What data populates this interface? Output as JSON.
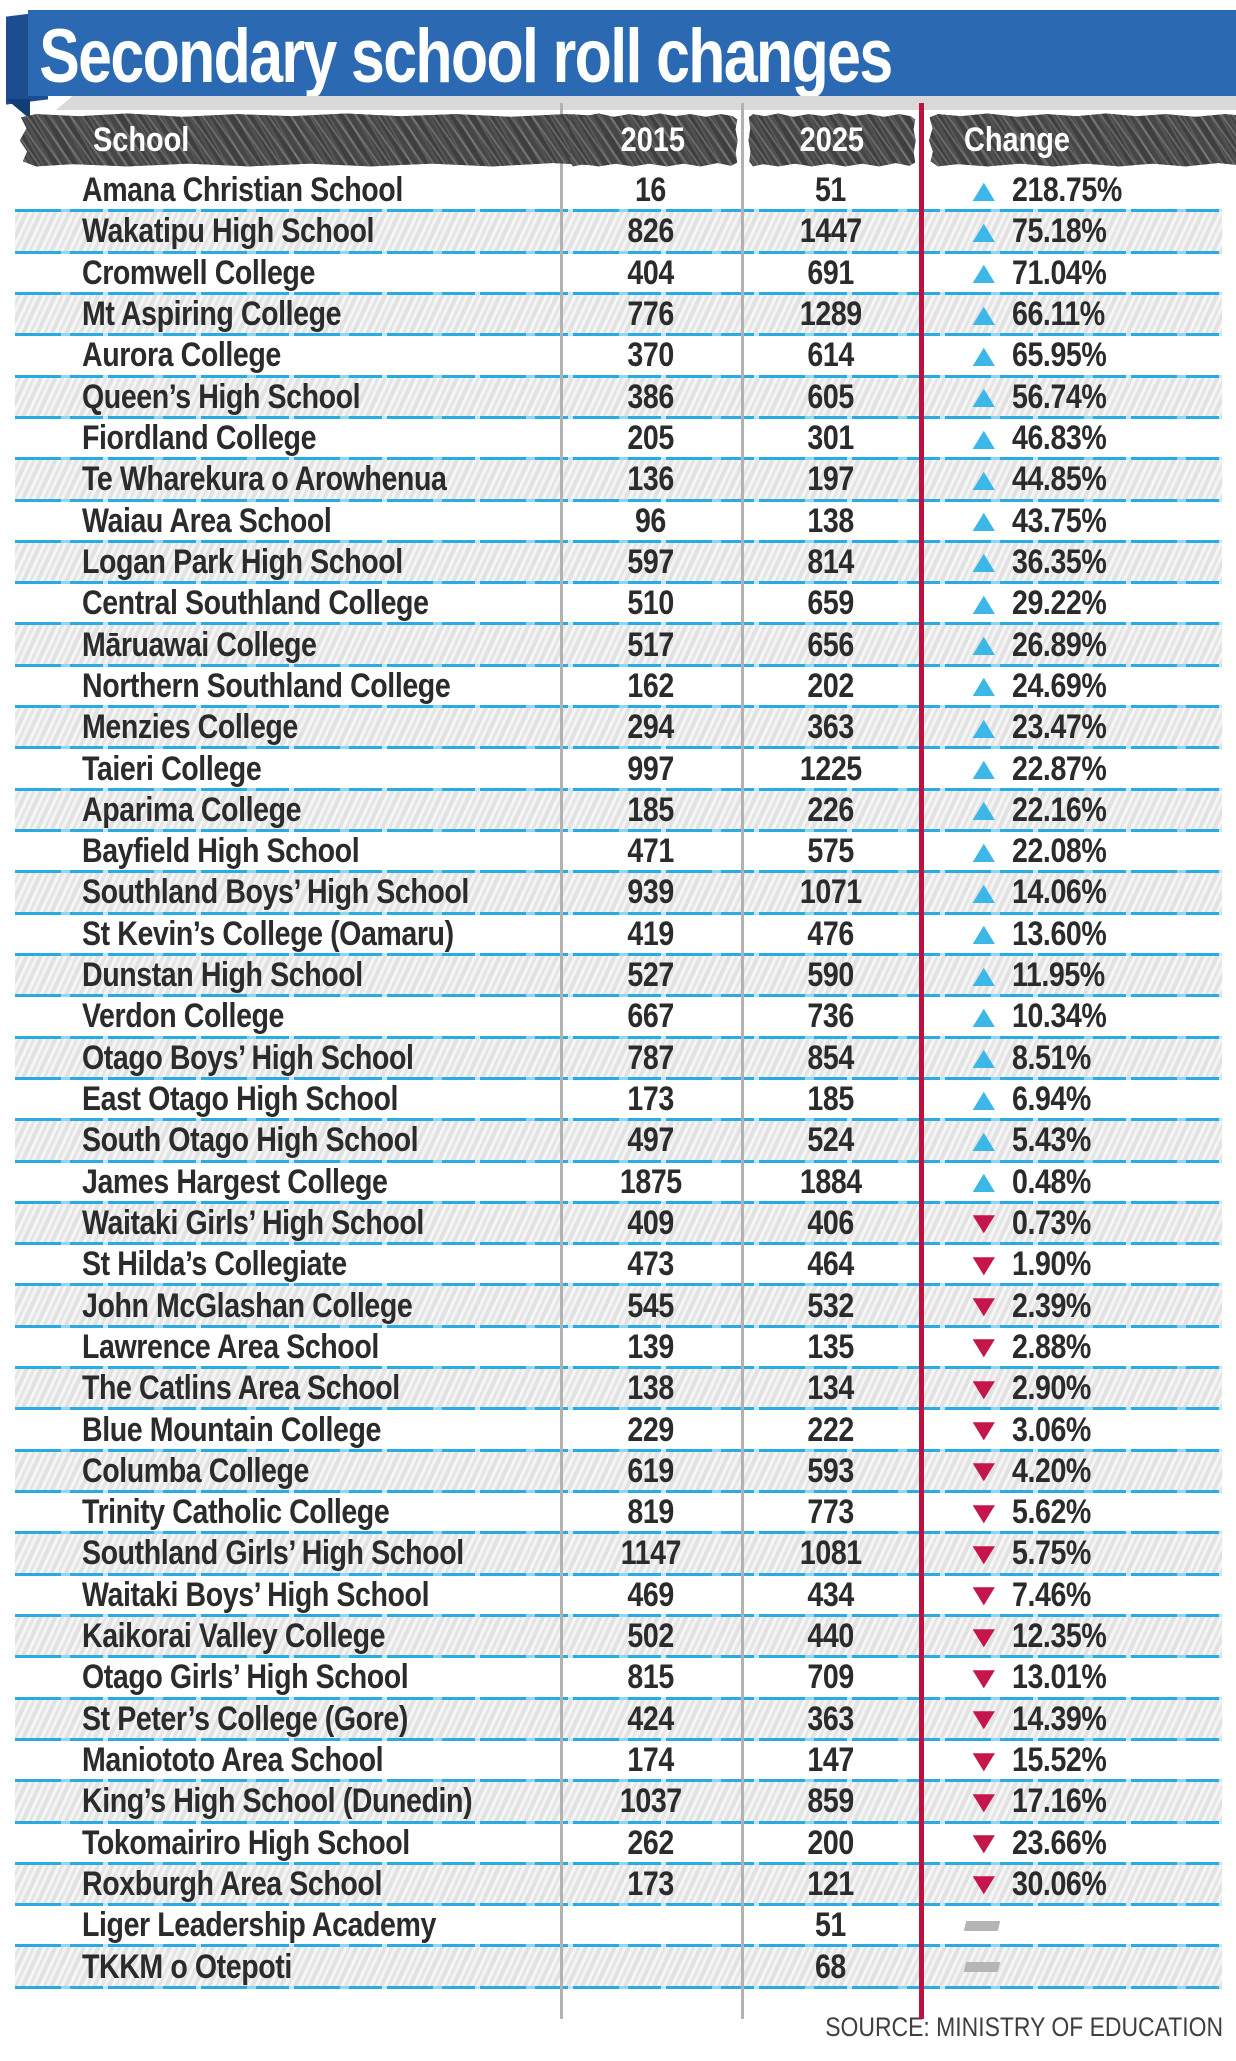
{
  "title": "Secondary school roll changes",
  "source": "SOURCE: MINISTRY OF EDUCATION",
  "icons": {
    "up_triangle": "▲",
    "down_triangle": "▼"
  },
  "colors": {
    "banner_blue": "#2b6ab3",
    "banner_bevel_blue": "#1c4d8f",
    "header_chalk_gray": "#484848",
    "row_stripe_gray": "#ececec",
    "row_line_blue": "#29abe2",
    "up_triangle_blue": "#3db6e8",
    "down_triangle_red": "#c4164a",
    "change_divider_red": "#bd1140",
    "column_divider_gray": "#b2b2b2",
    "text_dark": "#2b2b2b"
  },
  "chart_data": {
    "type": "table",
    "title": "Secondary school roll changes",
    "columns": [
      "School",
      "2015",
      "2025",
      "Change"
    ],
    "rows": [
      {
        "school": "Amana Christian School",
        "r2015": "16",
        "r2025": "51",
        "change": "218.75%",
        "dir": "up"
      },
      {
        "school": "Wakatipu High School",
        "r2015": "826",
        "r2025": "1447",
        "change": "75.18%",
        "dir": "up"
      },
      {
        "school": "Cromwell College",
        "r2015": "404",
        "r2025": "691",
        "change": "71.04%",
        "dir": "up"
      },
      {
        "school": "Mt Aspiring College",
        "r2015": "776",
        "r2025": "1289",
        "change": "66.11%",
        "dir": "up"
      },
      {
        "school": "Aurora College",
        "r2015": "370",
        "r2025": "614",
        "change": "65.95%",
        "dir": "up"
      },
      {
        "school": "Queen’s High School",
        "r2015": "386",
        "r2025": "605",
        "change": "56.74%",
        "dir": "up"
      },
      {
        "school": "Fiordland College",
        "r2015": "205",
        "r2025": "301",
        "change": "46.83%",
        "dir": "up"
      },
      {
        "school": "Te Wharekura o Arowhenua",
        "r2015": "136",
        "r2025": "197",
        "change": "44.85%",
        "dir": "up"
      },
      {
        "school": "Waiau Area School",
        "r2015": "96",
        "r2025": "138",
        "change": "43.75%",
        "dir": "up"
      },
      {
        "school": "Logan Park High School",
        "r2015": "597",
        "r2025": "814",
        "change": "36.35%",
        "dir": "up"
      },
      {
        "school": "Central Southland College",
        "r2015": "510",
        "r2025": "659",
        "change": "29.22%",
        "dir": "up"
      },
      {
        "school": "Māruawai College",
        "r2015": "517",
        "r2025": "656",
        "change": "26.89%",
        "dir": "up"
      },
      {
        "school": "Northern Southland College",
        "r2015": "162",
        "r2025": "202",
        "change": "24.69%",
        "dir": "up"
      },
      {
        "school": "Menzies College",
        "r2015": "294",
        "r2025": "363",
        "change": "23.47%",
        "dir": "up"
      },
      {
        "school": "Taieri College",
        "r2015": "997",
        "r2025": "1225",
        "change": "22.87%",
        "dir": "up"
      },
      {
        "school": "Aparima College",
        "r2015": "185",
        "r2025": "226",
        "change": "22.16%",
        "dir": "up"
      },
      {
        "school": "Bayfield High School",
        "r2015": "471",
        "r2025": "575",
        "change": "22.08%",
        "dir": "up"
      },
      {
        "school": "Southland Boys’ High School",
        "r2015": "939",
        "r2025": "1071",
        "change": "14.06%",
        "dir": "up"
      },
      {
        "school": "St Kevin’s College (Oamaru)",
        "r2015": "419",
        "r2025": "476",
        "change": "13.60%",
        "dir": "up"
      },
      {
        "school": "Dunstan High School",
        "r2015": "527",
        "r2025": "590",
        "change": "11.95%",
        "dir": "up"
      },
      {
        "school": "Verdon College",
        "r2015": "667",
        "r2025": "736",
        "change": "10.34%",
        "dir": "up"
      },
      {
        "school": "Otago Boys’ High School",
        "r2015": "787",
        "r2025": "854",
        "change": "8.51%",
        "dir": "up"
      },
      {
        "school": "East Otago High School",
        "r2015": "173",
        "r2025": "185",
        "change": "6.94%",
        "dir": "up"
      },
      {
        "school": "South Otago High School",
        "r2015": "497",
        "r2025": "524",
        "change": "5.43%",
        "dir": "up"
      },
      {
        "school": "James Hargest College",
        "r2015": "1875",
        "r2025": "1884",
        "change": "0.48%",
        "dir": "up"
      },
      {
        "school": "Waitaki Girls’ High School",
        "r2015": "409",
        "r2025": "406",
        "change": "0.73%",
        "dir": "down"
      },
      {
        "school": "St Hilda’s Collegiate",
        "r2015": "473",
        "r2025": "464",
        "change": "1.90%",
        "dir": "down"
      },
      {
        "school": "John McGlashan College",
        "r2015": "545",
        "r2025": "532",
        "change": "2.39%",
        "dir": "down"
      },
      {
        "school": "Lawrence Area School",
        "r2015": "139",
        "r2025": "135",
        "change": "2.88%",
        "dir": "down"
      },
      {
        "school": "The Catlins Area School",
        "r2015": "138",
        "r2025": "134",
        "change": "2.90%",
        "dir": "down"
      },
      {
        "school": "Blue Mountain College",
        "r2015": "229",
        "r2025": "222",
        "change": "3.06%",
        "dir": "down"
      },
      {
        "school": "Columba College",
        "r2015": "619",
        "r2025": "593",
        "change": "4.20%",
        "dir": "down"
      },
      {
        "school": "Trinity Catholic College",
        "r2015": "819",
        "r2025": "773",
        "change": "5.62%",
        "dir": "down"
      },
      {
        "school": "Southland Girls’ High School",
        "r2015": "1147",
        "r2025": "1081",
        "change": "5.75%",
        "dir": "down"
      },
      {
        "school": "Waitaki Boys’ High School",
        "r2015": "469",
        "r2025": "434",
        "change": "7.46%",
        "dir": "down"
      },
      {
        "school": "Kaikorai Valley College",
        "r2015": "502",
        "r2025": "440",
        "change": "12.35%",
        "dir": "down"
      },
      {
        "school": "Otago Girls’ High School",
        "r2015": "815",
        "r2025": "709",
        "change": "13.01%",
        "dir": "down"
      },
      {
        "school": "St Peter’s College (Gore)",
        "r2015": "424",
        "r2025": "363",
        "change": "14.39%",
        "dir": "down"
      },
      {
        "school": "Maniototo Area School",
        "r2015": "174",
        "r2025": "147",
        "change": "15.52%",
        "dir": "down"
      },
      {
        "school": "King’s High School (Dunedin)",
        "r2015": "1037",
        "r2025": "859",
        "change": "17.16%",
        "dir": "down"
      },
      {
        "school": "Tokomairiro High School",
        "r2015": "262",
        "r2025": "200",
        "change": "23.66%",
        "dir": "down"
      },
      {
        "school": "Roxburgh Area School",
        "r2015": "173",
        "r2025": "121",
        "change": "30.06%",
        "dir": "down"
      },
      {
        "school": "Liger Leadership Academy",
        "r2015": "",
        "r2025": "51",
        "change": "",
        "dir": "none"
      },
      {
        "school": "TKKM o Otepoti",
        "r2015": "",
        "r2025": "68",
        "change": "",
        "dir": "none"
      }
    ]
  }
}
